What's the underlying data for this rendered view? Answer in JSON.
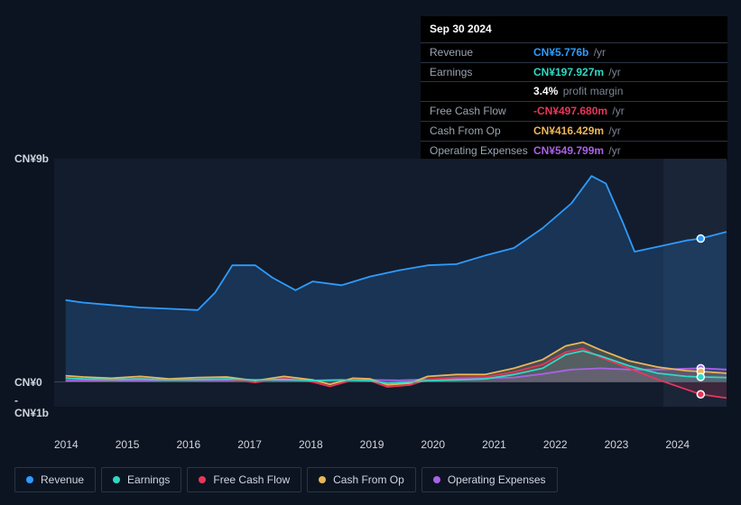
{
  "tooltip": {
    "date": "Sep 30 2024",
    "rows": [
      {
        "label": "Revenue",
        "value": "CN¥5.776b",
        "unit": "/yr",
        "color": "#2e9bff"
      },
      {
        "label": "Earnings",
        "value": "CN¥197.927m",
        "unit": "/yr",
        "color": "#2fd9c4"
      },
      {
        "label": "",
        "value": "3.4%",
        "unit": "profit margin",
        "color": "#ffffff"
      },
      {
        "label": "Free Cash Flow",
        "value": "-CN¥497.680m",
        "unit": "/yr",
        "color": "#e8365a"
      },
      {
        "label": "Cash From Op",
        "value": "CN¥416.429m",
        "unit": "/yr",
        "color": "#eab657"
      },
      {
        "label": "Operating Expenses",
        "value": "CN¥549.799m",
        "unit": "/yr",
        "color": "#a862e6"
      }
    ]
  },
  "chart": {
    "type": "area",
    "background_color": "#131c2c",
    "future_panel_color": "#1a2538",
    "ylim": [
      -1,
      9
    ],
    "y_ticks": [
      {
        "v": 9,
        "label": "CN¥9b"
      },
      {
        "v": 0,
        "label": "CN¥0"
      },
      {
        "v": -1,
        "label": "-CN¥1b"
      }
    ],
    "x_labels": [
      "2014",
      "2015",
      "2016",
      "2017",
      "2018",
      "2019",
      "2020",
      "2021",
      "2022",
      "2023",
      "2024"
    ],
    "x_min": 2013.5,
    "x_max": 2025.2,
    "series": [
      {
        "name": "Revenue",
        "color": "#2e9bff",
        "fill": "rgba(40,110,180,0.30)",
        "data": [
          [
            2013.7,
            3.3
          ],
          [
            2014,
            3.2
          ],
          [
            2014.5,
            3.1
          ],
          [
            2015,
            3.0
          ],
          [
            2015.5,
            2.95
          ],
          [
            2016,
            2.9
          ],
          [
            2016.3,
            3.6
          ],
          [
            2016.6,
            4.7
          ],
          [
            2017,
            4.7
          ],
          [
            2017.3,
            4.2
          ],
          [
            2017.7,
            3.7
          ],
          [
            2018,
            4.05
          ],
          [
            2018.5,
            3.9
          ],
          [
            2019,
            4.25
          ],
          [
            2019.5,
            4.5
          ],
          [
            2020,
            4.7
          ],
          [
            2020.5,
            4.75
          ],
          [
            2021,
            5.1
          ],
          [
            2021.5,
            5.4
          ],
          [
            2022,
            6.2
          ],
          [
            2022.5,
            7.2
          ],
          [
            2022.85,
            8.3
          ],
          [
            2023.1,
            8.0
          ],
          [
            2023.4,
            6.4
          ],
          [
            2023.6,
            5.25
          ],
          [
            2024,
            5.45
          ],
          [
            2024.5,
            5.7
          ],
          [
            2024.75,
            5.78
          ],
          [
            2025.2,
            6.05
          ]
        ]
      },
      {
        "name": "Operating Expenses",
        "color": "#a862e6",
        "fill": "rgba(140,80,200,0.25)",
        "data": [
          [
            2013.7,
            0.05
          ],
          [
            2015,
            0.05
          ],
          [
            2016,
            0.06
          ],
          [
            2017,
            0.07
          ],
          [
            2018,
            0.06
          ],
          [
            2019,
            0.08
          ],
          [
            2019.5,
            0.06
          ],
          [
            2020,
            0.1
          ],
          [
            2020.5,
            0.12
          ],
          [
            2021,
            0.15
          ],
          [
            2021.5,
            0.18
          ],
          [
            2022,
            0.32
          ],
          [
            2022.5,
            0.5
          ],
          [
            2023,
            0.55
          ],
          [
            2023.5,
            0.5
          ],
          [
            2024,
            0.5
          ],
          [
            2024.75,
            0.55
          ],
          [
            2025.2,
            0.5
          ]
        ]
      },
      {
        "name": "Cash From Op",
        "color": "#eab657",
        "fill": "rgba(210,160,80,0.25)",
        "data": [
          [
            2013.7,
            0.25
          ],
          [
            2014,
            0.2
          ],
          [
            2014.5,
            0.15
          ],
          [
            2015,
            0.22
          ],
          [
            2015.5,
            0.12
          ],
          [
            2016,
            0.18
          ],
          [
            2016.5,
            0.2
          ],
          [
            2017,
            0.05
          ],
          [
            2017.5,
            0.22
          ],
          [
            2018,
            0.08
          ],
          [
            2018.3,
            -0.1
          ],
          [
            2018.7,
            0.15
          ],
          [
            2019,
            0.12
          ],
          [
            2019.3,
            -0.12
          ],
          [
            2019.7,
            -0.05
          ],
          [
            2020,
            0.22
          ],
          [
            2020.5,
            0.3
          ],
          [
            2021,
            0.3
          ],
          [
            2021.5,
            0.55
          ],
          [
            2022,
            0.9
          ],
          [
            2022.4,
            1.45
          ],
          [
            2022.7,
            1.6
          ],
          [
            2023,
            1.3
          ],
          [
            2023.5,
            0.85
          ],
          [
            2024,
            0.6
          ],
          [
            2024.5,
            0.45
          ],
          [
            2024.75,
            0.42
          ],
          [
            2025.2,
            0.35
          ]
        ]
      },
      {
        "name": "Free Cash Flow",
        "color": "#e8365a",
        "fill": "rgba(200,50,80,0.20)",
        "data": [
          [
            2013.7,
            0.18
          ],
          [
            2014,
            0.12
          ],
          [
            2014.5,
            0.08
          ],
          [
            2015,
            0.15
          ],
          [
            2015.5,
            0.05
          ],
          [
            2016,
            0.1
          ],
          [
            2016.5,
            0.12
          ],
          [
            2017,
            -0.02
          ],
          [
            2017.5,
            0.15
          ],
          [
            2018,
            0.0
          ],
          [
            2018.3,
            -0.18
          ],
          [
            2018.7,
            0.08
          ],
          [
            2019,
            0.05
          ],
          [
            2019.3,
            -0.2
          ],
          [
            2019.7,
            -0.12
          ],
          [
            2020,
            0.1
          ],
          [
            2020.5,
            0.18
          ],
          [
            2021,
            0.2
          ],
          [
            2021.5,
            0.4
          ],
          [
            2022,
            0.7
          ],
          [
            2022.4,
            1.2
          ],
          [
            2022.7,
            1.35
          ],
          [
            2023,
            1.0
          ],
          [
            2023.5,
            0.55
          ],
          [
            2024,
            0.1
          ],
          [
            2024.5,
            -0.3
          ],
          [
            2024.75,
            -0.5
          ],
          [
            2025.2,
            -0.65
          ]
        ]
      },
      {
        "name": "Earnings",
        "color": "#2fd9c4",
        "fill": "rgba(47,180,160,0.20)",
        "data": [
          [
            2013.7,
            0.15
          ],
          [
            2014,
            0.12
          ],
          [
            2014.5,
            0.1
          ],
          [
            2015,
            0.12
          ],
          [
            2015.5,
            0.08
          ],
          [
            2016,
            0.1
          ],
          [
            2016.5,
            0.12
          ],
          [
            2017,
            0.08
          ],
          [
            2017.5,
            0.1
          ],
          [
            2018,
            0.05
          ],
          [
            2018.5,
            0.08
          ],
          [
            2019,
            0.05
          ],
          [
            2019.3,
            -0.05
          ],
          [
            2019.7,
            0.0
          ],
          [
            2020,
            0.05
          ],
          [
            2020.5,
            0.08
          ],
          [
            2021,
            0.12
          ],
          [
            2021.5,
            0.3
          ],
          [
            2022,
            0.55
          ],
          [
            2022.4,
            1.1
          ],
          [
            2022.7,
            1.25
          ],
          [
            2023,
            1.05
          ],
          [
            2023.5,
            0.65
          ],
          [
            2024,
            0.35
          ],
          [
            2024.5,
            0.22
          ],
          [
            2024.75,
            0.2
          ],
          [
            2025.2,
            0.18
          ]
        ]
      }
    ],
    "legend": [
      {
        "name": "Revenue",
        "color": "#2e9bff"
      },
      {
        "name": "Earnings",
        "color": "#2fd9c4"
      },
      {
        "name": "Free Cash Flow",
        "color": "#e8365a"
      },
      {
        "name": "Cash From Op",
        "color": "#eab657"
      },
      {
        "name": "Operating Expenses",
        "color": "#a862e6"
      }
    ]
  }
}
